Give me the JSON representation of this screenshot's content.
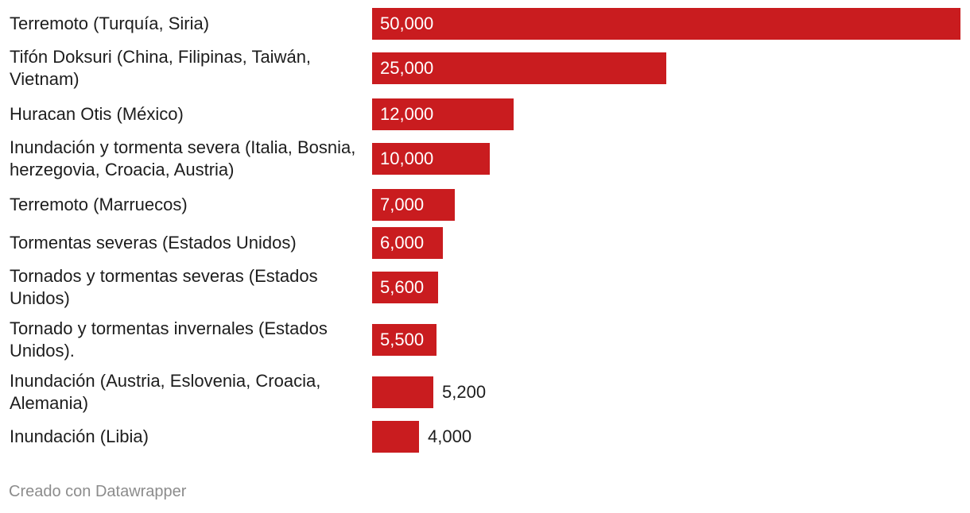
{
  "chart_data": {
    "type": "bar",
    "orientation": "horizontal",
    "categories": [
      "Terremoto (Turquía, Siria)",
      "Tifón Doksuri (China, Filipinas, Taiwán, Vietnam)",
      "Huracan Otis (México)",
      "Inundación y tormenta severa (Italia, Bosnia, herzegovia, Croacia, Austria)",
      "Terremoto (Marruecos)",
      "Tormentas severas (Estados Unidos)",
      "Tornados y tormentas severas (Estados Unidos)",
      "Tornado y tormentas invernales (Estados Unidos).",
      "Inundación (Austria, Eslovenia, Croacia, Alemania)",
      "Inundación (Libia)"
    ],
    "values": [
      50000,
      25000,
      12000,
      10000,
      7000,
      6000,
      5600,
      5500,
      5200,
      4000
    ],
    "value_labels": [
      "50,000",
      "25,000",
      "12,000",
      "10,000",
      "7,000",
      "6,000",
      "5,600",
      "5,500",
      "5,200",
      "4,000"
    ],
    "xlim": [
      0,
      50000
    ],
    "grid": false,
    "bar_color": "#c91c1f"
  },
  "footer": {
    "credit": "Creado con Datawrapper"
  }
}
